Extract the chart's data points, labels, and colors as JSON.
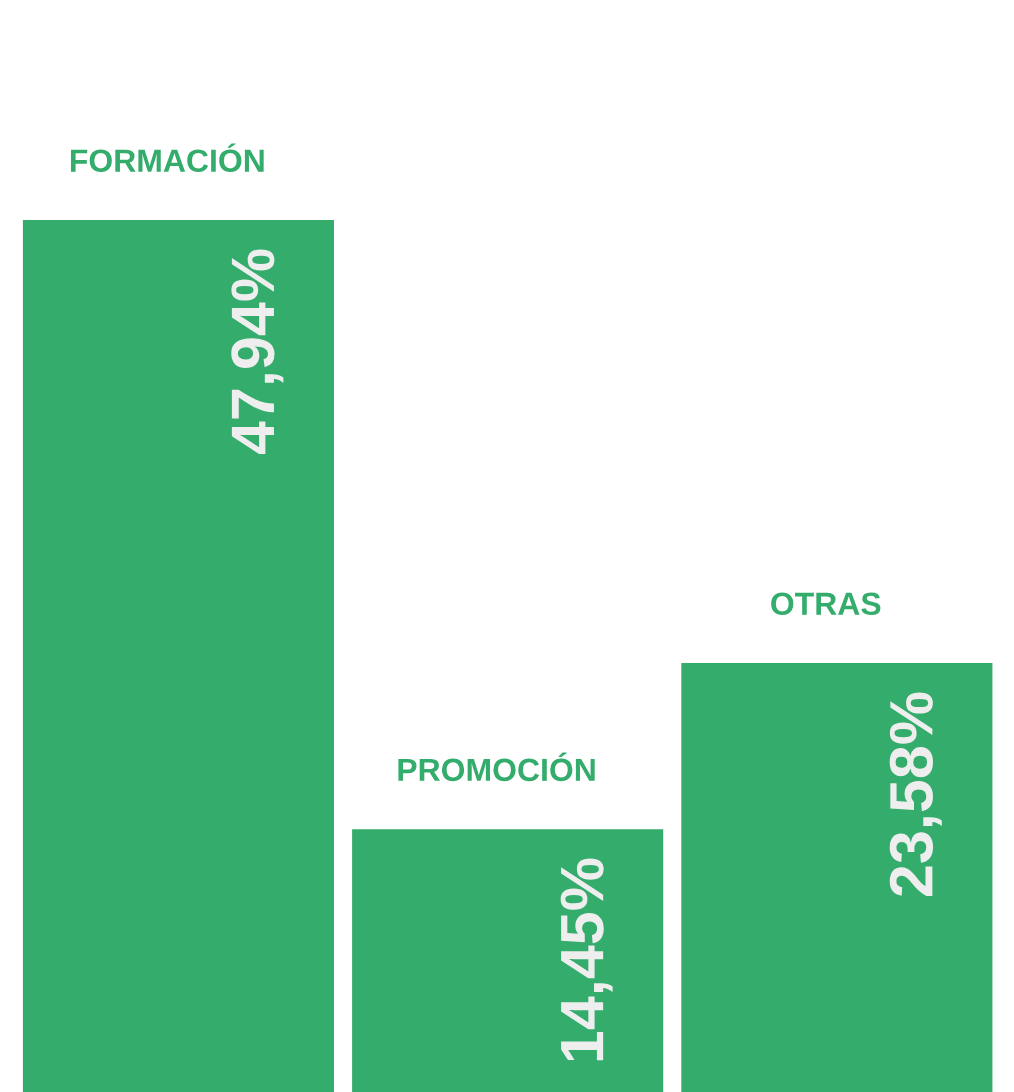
{
  "chart_data": {
    "type": "bar",
    "categories": [
      "FORMACIÓN",
      "PROMOCIÓN",
      "OTRAS"
    ],
    "values": [
      47.94,
      14.45,
      23.58
    ],
    "value_labels": [
      "47,94%",
      "14,45%",
      "23,58%"
    ],
    "color": "#33ac6c"
  }
}
